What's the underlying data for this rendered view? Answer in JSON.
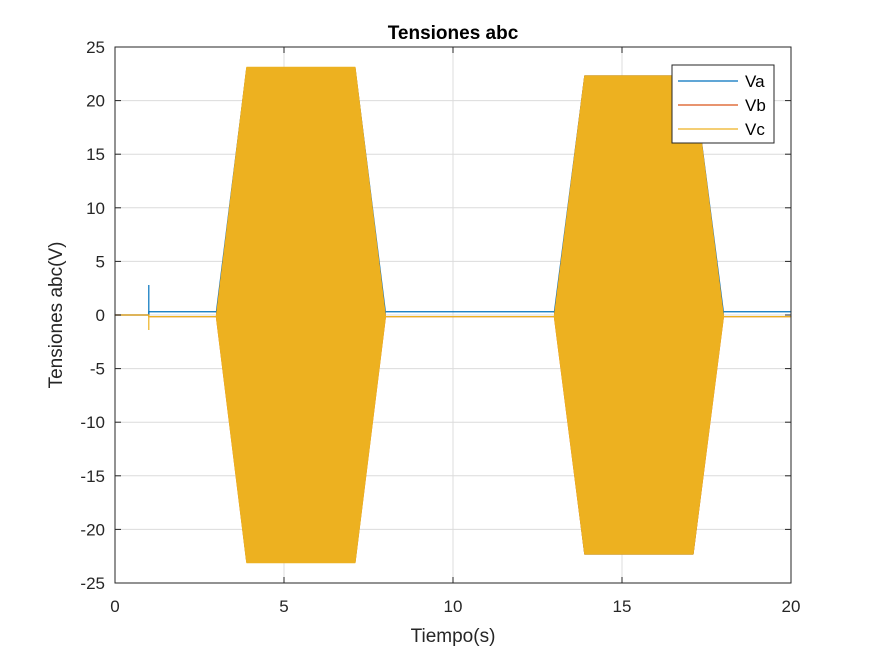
{
  "chart_data": {
    "type": "line",
    "title": "Tensiones abc",
    "xlabel": "Tiempo(s)",
    "ylabel": "Tensiones abc(V)",
    "xlim": [
      0,
      20
    ],
    "ylim": [
      -25,
      25
    ],
    "xticks": [
      0,
      5,
      10,
      15,
      20
    ],
    "yticks": [
      -25,
      -20,
      -15,
      -10,
      -5,
      0,
      5,
      10,
      15,
      20,
      25
    ],
    "xtick_labels": [
      "0",
      "5",
      "10",
      "15",
      "20"
    ],
    "ytick_labels": [
      "-25",
      "-20",
      "-15",
      "-10",
      "-5",
      "0",
      "5",
      "10",
      "15",
      "20",
      "25"
    ],
    "grid": true,
    "legend_position": "top-right",
    "series": [
      {
        "name": "Va",
        "color": "#0072BD",
        "envelope_upper": {
          "x": [
            0,
            1,
            1,
            3,
            3.9,
            7.1,
            8,
            13,
            13.9,
            17.1,
            18,
            20
          ],
          "y": [
            0,
            0,
            0.3,
            0.3,
            23,
            23,
            0.3,
            0.3,
            22.3,
            22.3,
            0.3,
            0.3
          ]
        },
        "envelope_lower": {
          "x": [
            0,
            1,
            1,
            3,
            3.9,
            7.1,
            8,
            13,
            13.9,
            17.1,
            18,
            20
          ],
          "y": [
            0,
            0,
            0.3,
            0.3,
            -23,
            -23,
            0.3,
            0.3,
            -22.3,
            -22.3,
            0.3,
            0.3
          ]
        },
        "spike": {
          "x": 1,
          "y_min": 0,
          "y_max": 2.8
        }
      },
      {
        "name": "Vb",
        "color": "#D95319",
        "envelope_upper": {
          "x": [
            0,
            1,
            1,
            3,
            3.9,
            7.1,
            8,
            13,
            13.9,
            17.1,
            18,
            20
          ],
          "y": [
            0,
            0,
            -0.15,
            -0.15,
            23,
            23,
            -0.15,
            -0.15,
            22.3,
            22.3,
            -0.15,
            -0.15
          ]
        },
        "envelope_lower": {
          "x": [
            0,
            1,
            1,
            3,
            3.9,
            7.1,
            8,
            13,
            13.9,
            17.1,
            18,
            20
          ],
          "y": [
            0,
            0,
            -0.15,
            -0.15,
            -23,
            -23,
            -0.15,
            -0.15,
            -22.3,
            -22.3,
            -0.15,
            -0.15
          ]
        }
      },
      {
        "name": "Vc",
        "color": "#EDB120",
        "envelope_upper": {
          "x": [
            0,
            1,
            1,
            3,
            3.9,
            7.1,
            8,
            13,
            13.9,
            17.1,
            18,
            20
          ],
          "y": [
            0,
            0,
            -0.15,
            -0.15,
            23.1,
            23.1,
            -0.15,
            -0.15,
            22.3,
            22.3,
            -0.15,
            -0.15
          ]
        },
        "envelope_lower": {
          "x": [
            0,
            1,
            1,
            3,
            3.9,
            7.1,
            8,
            13,
            13.9,
            17.1,
            18,
            20
          ],
          "y": [
            0,
            0,
            -0.15,
            -0.15,
            -23.1,
            -23.1,
            -0.15,
            -0.15,
            -22.3,
            -22.3,
            -0.15,
            -0.15
          ]
        },
        "spike": {
          "x": 1,
          "y_min": -1.4,
          "y_max": 0
        }
      }
    ]
  }
}
